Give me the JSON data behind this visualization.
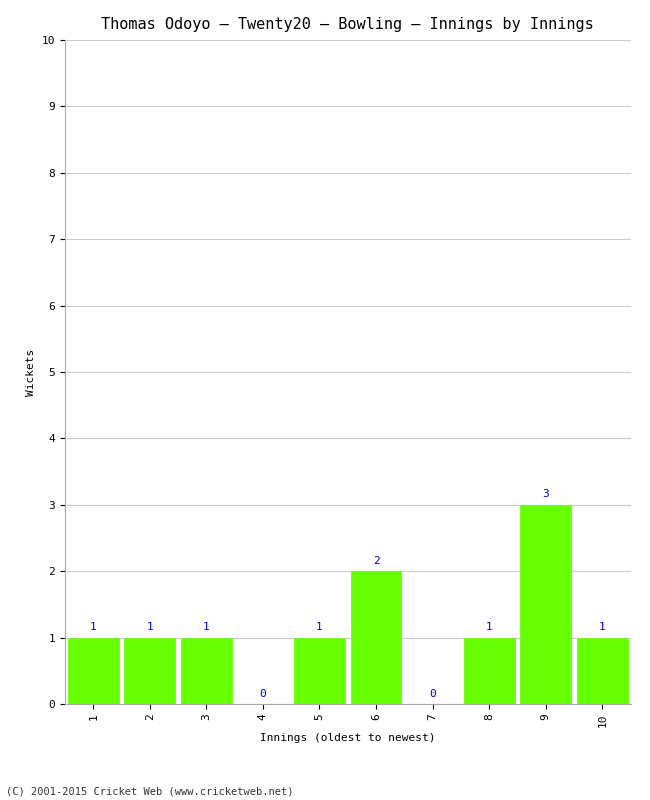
{
  "title": "Thomas Odoyo – Twenty20 – Bowling – Innings by Innings",
  "xlabel": "Innings (oldest to newest)",
  "ylabel": "Wickets",
  "categories": [
    "1",
    "2",
    "3",
    "4",
    "5",
    "6",
    "7",
    "8",
    "9",
    "10"
  ],
  "values": [
    1,
    1,
    1,
    0,
    1,
    2,
    0,
    1,
    3,
    1
  ],
  "bar_color": "#66ff00",
  "bar_edge_color": "#66ff00",
  "label_color": "#0000cc",
  "ylim": [
    0,
    10
  ],
  "yticks": [
    0,
    1,
    2,
    3,
    4,
    5,
    6,
    7,
    8,
    9,
    10
  ],
  "grid_color": "#cccccc",
  "background_color": "#ffffff",
  "footer": "(C) 2001-2015 Cricket Web (www.cricketweb.net)",
  "title_fontsize": 11,
  "label_fontsize": 8,
  "tick_fontsize": 8,
  "footer_fontsize": 7.5,
  "value_fontsize": 8
}
